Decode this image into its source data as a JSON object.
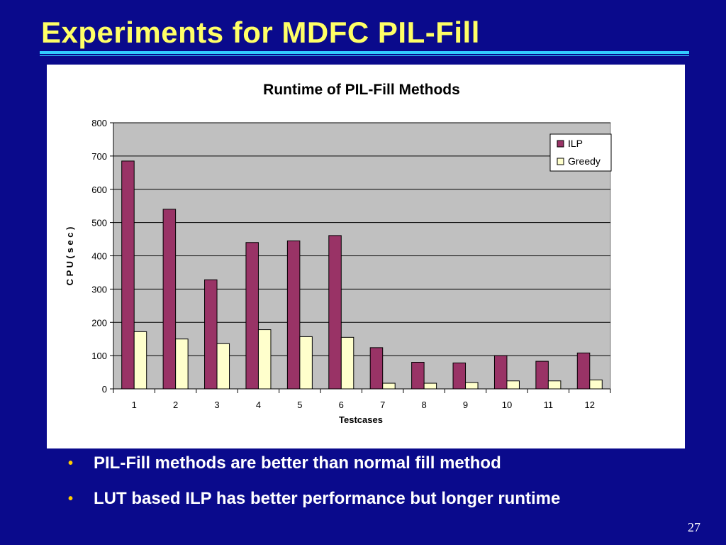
{
  "slide": {
    "title": "Experiments for MDFC PIL-Fill",
    "bullets": [
      "PIL-Fill methods are better than normal fill method",
      "LUT based ILP has better performance but longer runtime"
    ],
    "page_number": "27",
    "colors": {
      "background": "#0a0a8c",
      "title": "#ffff66",
      "rule": "#33ccff",
      "bullet": "#ffcc00"
    }
  },
  "chart_data": {
    "type": "bar",
    "title": "Runtime of PIL-Fill Methods",
    "xlabel": "Testcases",
    "ylabel": "C P U ( s e c )",
    "categories": [
      "1",
      "2",
      "3",
      "4",
      "5",
      "6",
      "7",
      "8",
      "9",
      "10",
      "11",
      "12"
    ],
    "series": [
      {
        "name": "ILP",
        "color": "#993366",
        "values": [
          685,
          540,
          328,
          440,
          445,
          461,
          124,
          80,
          78,
          100,
          83,
          108
        ]
      },
      {
        "name": "Greedy",
        "color": "#ffffcc",
        "values": [
          172,
          150,
          136,
          178,
          157,
          155,
          17,
          17,
          19,
          24,
          24,
          27
        ]
      }
    ],
    "ylim": [
      0,
      800
    ],
    "yticks": [
      "0",
      "100",
      "200",
      "300",
      "400",
      "500",
      "600",
      "700",
      "800"
    ],
    "grid": true,
    "plot_background": "#c0c0c0",
    "legend": "top-right"
  }
}
